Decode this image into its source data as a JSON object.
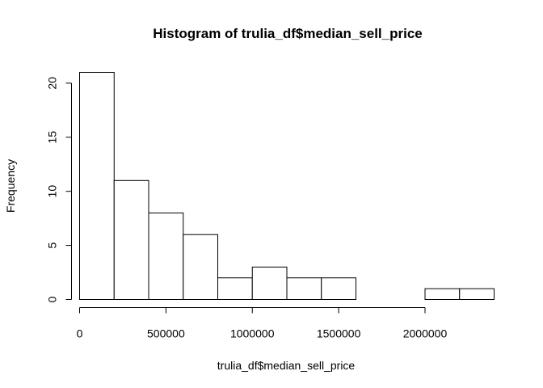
{
  "chart_data": {
    "type": "bar",
    "title": "Histogram of trulia_df$median_sell_price",
    "xlabel": "trulia_df$median_sell_price",
    "ylabel": "Frequency",
    "bins": [
      {
        "start": 0,
        "end": 200000,
        "count": 21
      },
      {
        "start": 200000,
        "end": 400000,
        "count": 11
      },
      {
        "start": 400000,
        "end": 600000,
        "count": 8
      },
      {
        "start": 600000,
        "end": 800000,
        "count": 6
      },
      {
        "start": 800000,
        "end": 1000000,
        "count": 2
      },
      {
        "start": 1000000,
        "end": 1200000,
        "count": 3
      },
      {
        "start": 1200000,
        "end": 1400000,
        "count": 2
      },
      {
        "start": 1400000,
        "end": 1600000,
        "count": 2
      },
      {
        "start": 1600000,
        "end": 1800000,
        "count": 0
      },
      {
        "start": 1800000,
        "end": 2000000,
        "count": 0
      },
      {
        "start": 2000000,
        "end": 2200000,
        "count": 1
      },
      {
        "start": 2200000,
        "end": 2400000,
        "count": 1
      }
    ],
    "xlim": [
      0,
      2400000
    ],
    "ylim": [
      0,
      21
    ],
    "x_ticks": [
      0,
      500000,
      1000000,
      1500000,
      2000000
    ],
    "x_tick_labels": [
      "0",
      "500000",
      "1000000",
      "1500000",
      "2000000"
    ],
    "y_ticks": [
      0,
      5,
      10,
      15,
      20
    ],
    "y_tick_labels": [
      "0",
      "5",
      "10",
      "15",
      "20"
    ],
    "grid": false,
    "bar_fill": "#ffffff",
    "bar_stroke": "#000000"
  }
}
